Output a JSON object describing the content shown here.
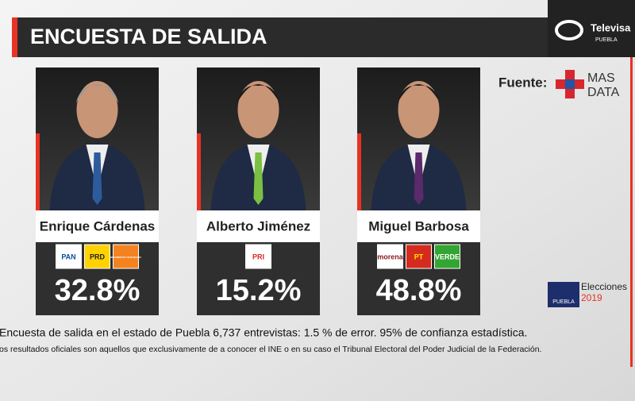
{
  "header": {
    "title": "ENCUESTA DE SALIDA",
    "network": "Televisa",
    "network_sub": "PUEBLA"
  },
  "source": {
    "label": "Fuente:",
    "brand_line1": "MAS",
    "brand_line2": "DATA"
  },
  "candidates": [
    {
      "name": "Enrique Cárdenas",
      "parties": [
        "PAN",
        "PRD",
        "MOVIMIENTO CIUDADANO"
      ],
      "percent": "32.8%"
    },
    {
      "name": "Alberto Jiménez",
      "parties": [
        "PRI"
      ],
      "percent": "15.2%"
    },
    {
      "name": "Miguel Barbosa",
      "parties": [
        "morena",
        "PT",
        "VERDE"
      ],
      "percent": "48.8%"
    }
  ],
  "badge": {
    "line1": "Elecciones",
    "line2": "2019",
    "tag": "PUEBLA"
  },
  "footnotes": [
    "Encuesta de salida en el estado de Puebla 6,737 entrevistas: 1.5 % de error.  95% de confianza estadística.",
    "os resultados oficiales son aquellos que exclusivamente de a conocer el INE o en su caso el Tribunal Electoral del Poder Judicial de la Federación."
  ]
}
